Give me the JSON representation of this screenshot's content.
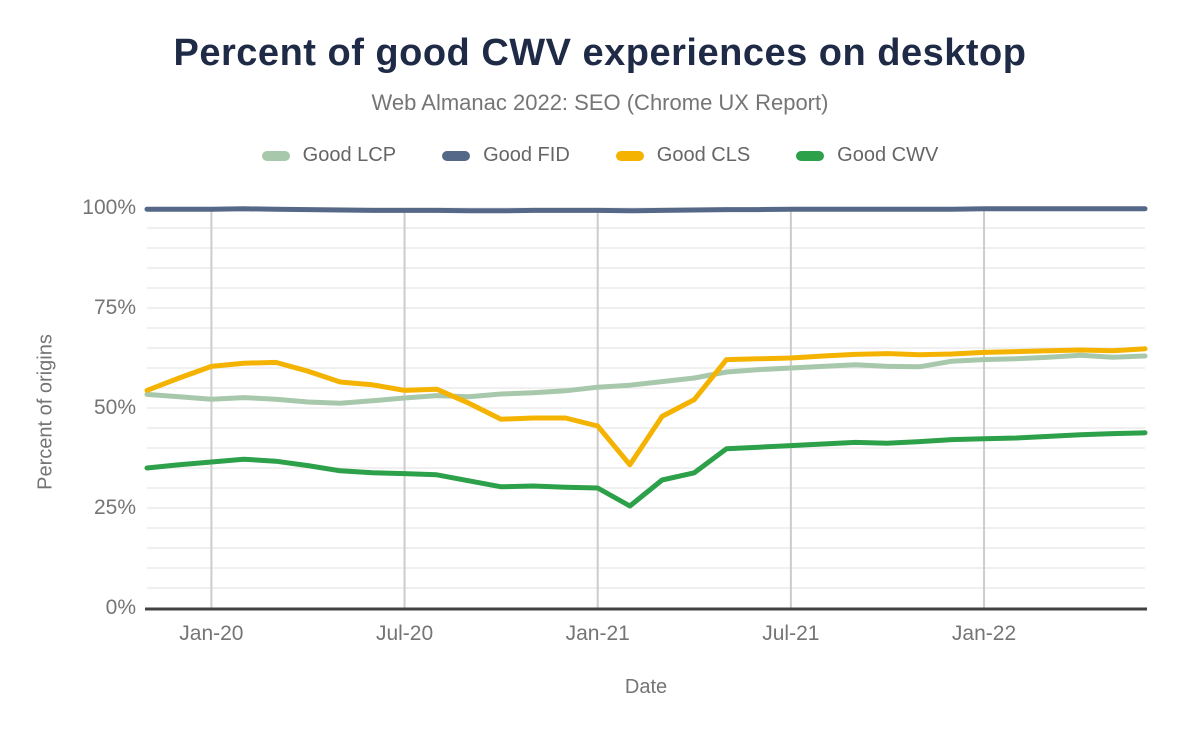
{
  "header": {
    "title": "Percent of good CWV experiences on desktop",
    "subtitle": "Web Almanac 2022: SEO (Chrome UX Report)"
  },
  "chart_data": {
    "type": "line",
    "title": "Percent of good CWV experiences on desktop",
    "subtitle": "Web Almanac 2022: SEO (Chrome UX Report)",
    "xlabel": "Date",
    "ylabel": "Percent of origins",
    "ylim": [
      0,
      100
    ],
    "grid": {
      "horizontal_minor_step_pct": 5,
      "vertical_at_x_ticks": true
    },
    "legend_position": "top",
    "y_ticks": [
      0,
      25,
      50,
      75,
      100
    ],
    "y_tick_labels": [
      "0%",
      "25%",
      "50%",
      "75%",
      "100%"
    ],
    "x_tick_labels": [
      "Jan-20",
      "Jul-20",
      "Jan-21",
      "Jul-21",
      "Jan-22"
    ],
    "x_tick_indices": [
      2,
      8,
      14,
      20,
      26
    ],
    "x": [
      "Nov-19",
      "Dec-19",
      "Jan-20",
      "Feb-20",
      "Mar-20",
      "Apr-20",
      "May-20",
      "Jun-20",
      "Jul-20",
      "Aug-20",
      "Sep-20",
      "Oct-20",
      "Nov-20",
      "Dec-20",
      "Jan-21",
      "Feb-21",
      "Mar-21",
      "Apr-21",
      "May-21",
      "Jun-21",
      "Jul-21",
      "Aug-21",
      "Sep-21",
      "Oct-21",
      "Nov-21",
      "Dec-21",
      "Jan-22",
      "Feb-22",
      "Mar-22",
      "Apr-22",
      "May-22",
      "Jun-22"
    ],
    "series": [
      {
        "name": "Good LCP",
        "color": "#A8C8AC",
        "values": [
          53.4,
          52.8,
          52.2,
          52.6,
          52.2,
          51.5,
          51.2,
          51.8,
          52.5,
          53.1,
          52.8,
          53.5,
          53.8,
          54.3,
          55.2,
          55.7,
          56.6,
          57.5,
          59.0,
          59.6,
          60.0,
          60.4,
          60.8,
          60.4,
          60.3,
          61.7,
          62.1,
          62.3,
          62.7,
          63.2,
          62.7,
          63.0
        ]
      },
      {
        "name": "Good FID",
        "color": "#566887",
        "values": [
          99.7,
          99.7,
          99.7,
          99.8,
          99.7,
          99.6,
          99.5,
          99.4,
          99.4,
          99.4,
          99.3,
          99.3,
          99.4,
          99.4,
          99.4,
          99.3,
          99.4,
          99.5,
          99.6,
          99.6,
          99.7,
          99.7,
          99.7,
          99.7,
          99.7,
          99.7,
          99.8,
          99.8,
          99.8,
          99.8,
          99.8,
          99.8
        ]
      },
      {
        "name": "Good CLS",
        "color": "#F5B301",
        "values": [
          54.4,
          57.5,
          60.4,
          61.2,
          61.4,
          59.2,
          56.5,
          55.8,
          54.4,
          54.7,
          51.2,
          47.2,
          47.5,
          47.5,
          45.5,
          35.8,
          47.9,
          52.1,
          62.1,
          62.3,
          62.5,
          63.0,
          63.4,
          63.6,
          63.3,
          63.5,
          63.9,
          64.1,
          64.3,
          64.5,
          64.3,
          64.8
        ]
      },
      {
        "name": "Good CWV",
        "color": "#2DA04A",
        "values": [
          35.0,
          35.8,
          36.5,
          37.2,
          36.7,
          35.6,
          34.3,
          33.8,
          33.6,
          33.3,
          31.8,
          30.3,
          30.5,
          30.2,
          30.0,
          25.5,
          32.0,
          33.8,
          39.8,
          40.2,
          40.6,
          41.0,
          41.4,
          41.2,
          41.6,
          42.1,
          42.3,
          42.5,
          42.9,
          43.3,
          43.6,
          43.8
        ]
      }
    ],
    "colors": {
      "title": "#1E2A46",
      "muted_text": "#757575",
      "axis_line": "#424242",
      "vertical_gridline": "#CCCCCC",
      "horizontal_gridline": "#ECECEC"
    }
  }
}
